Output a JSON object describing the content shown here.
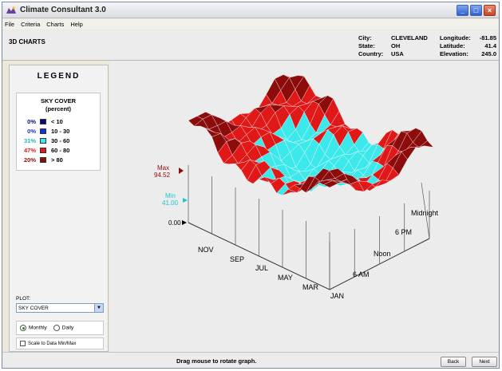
{
  "window": {
    "title": "Climate Consultant 3.0",
    "minimize": "_",
    "maximize": "□",
    "close": "×"
  },
  "menu": [
    "File",
    "Criteria",
    "Charts",
    "Help"
  ],
  "header": {
    "page_title": "3D CHARTS",
    "city_label": "City:",
    "city": "CLEVELAND",
    "state_label": "State:",
    "state": "OH",
    "country_label": "Country:",
    "country": "USA",
    "longitude_label": "Longitude:",
    "longitude": "-81.85",
    "latitude_label": "Latitude:",
    "latitude": "41.4",
    "elevation_label": "Elevation:",
    "elevation": "245.0"
  },
  "legend": {
    "title": "LEGEND",
    "heading": "SKY COVER",
    "unit": "(percent)",
    "rows": [
      {
        "pct": "0%",
        "range": "< 10",
        "color": "#0a0a80"
      },
      {
        "pct": "0%",
        "range": "10 - 30",
        "color": "#1430d8"
      },
      {
        "pct": "31%",
        "range": "30 - 60",
        "color": "#3de8ea"
      },
      {
        "pct": "47%",
        "range": "60 - 80",
        "color": "#e01818"
      },
      {
        "pct": "20%",
        "range": "> 80",
        "color": "#8c0c0c"
      }
    ]
  },
  "controls": {
    "plot_label": "PLOT:",
    "plot_value": "SKY COVER",
    "monthly_label": "Monthly",
    "daily_label": "Daily",
    "scale_label": "Scale to Data Min/Max"
  },
  "chart_data": {
    "type": "surface-3d",
    "variable": "SKY COVER",
    "unit": "percent",
    "max_label": "Max",
    "max_value": "94.52",
    "min_label": "Min",
    "min_value": "41.00",
    "zero_label": "0.00",
    "month_labels": [
      "NOV",
      "SEP",
      "JUL",
      "MAY",
      "MAR",
      "JAN"
    ],
    "hour_labels": [
      "Midnight",
      "6 PM",
      "Noon",
      "6 AM"
    ],
    "colors": {
      "high": "#e01818",
      "very_high": "#8c0c0c",
      "mid": "#3de8ea",
      "max_label": "#8c0c0c",
      "min_label": "#18c8cc"
    }
  },
  "footer": {
    "message": "Drag mouse to rotate graph.",
    "back": "Back",
    "next": "Next"
  }
}
